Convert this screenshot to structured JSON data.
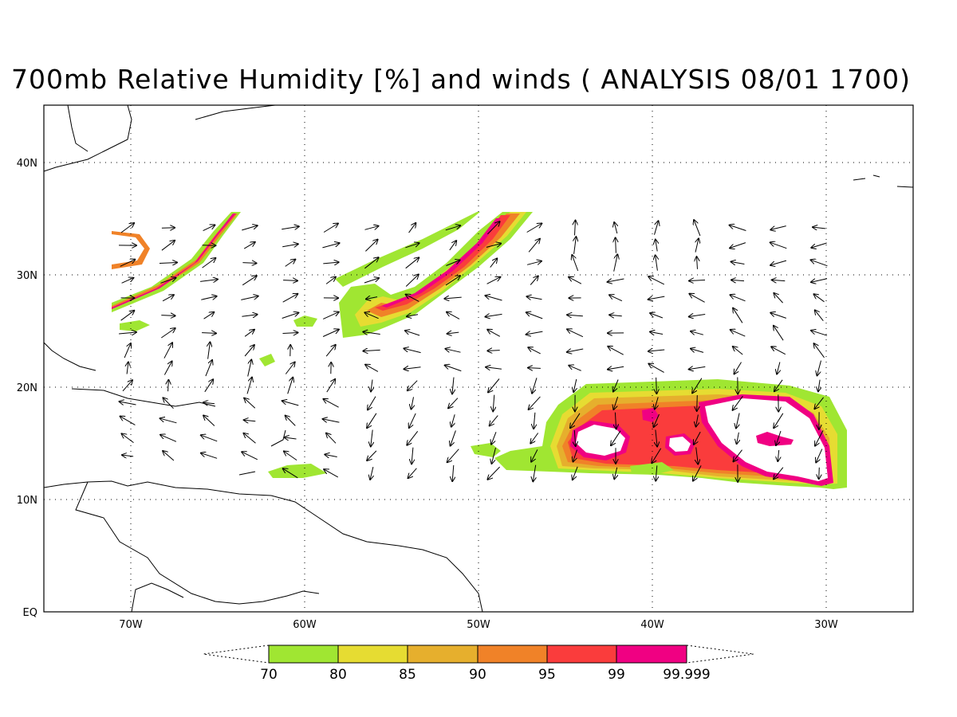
{
  "title": "700mb Relative Humidity [%] and winds ( ANALYSIS 08/01 1700)",
  "map": {
    "lon_range": [
      -75,
      -25
    ],
    "lat_range": [
      0,
      45
    ],
    "lat_labels": [
      "40N",
      "30N",
      "20N",
      "10N",
      "EQ"
    ],
    "lon_labels": [
      "70W",
      "60W",
      "50W",
      "40W",
      "30W"
    ],
    "grid": "dotted"
  },
  "colorbar": {
    "ticks": [
      "70",
      "80",
      "85",
      "90",
      "95",
      "99",
      "99.999"
    ],
    "colors": [
      "#a0e632",
      "#e6dc32",
      "#e6af2d",
      "#f08228",
      "#fa3c3c",
      "#f00082"
    ]
  }
}
